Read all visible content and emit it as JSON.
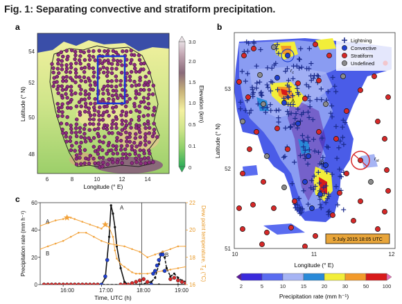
{
  "figure": {
    "title": "Fig. 1: Separating convective and stratiform precipitation."
  },
  "panel_a": {
    "label": "a",
    "xlabel": "Longitude (° E)",
    "ylabel": "Latitude (° N)",
    "xticks": [
      "6",
      "8",
      "10",
      "12",
      "14"
    ],
    "yticks": [
      "48",
      "50",
      "52",
      "54"
    ],
    "colorbar_label": "Elevation (km)",
    "colorbar_ticks": [
      "3.0",
      "2.0",
      "1.5",
      "1.0",
      "0.5",
      "0.1",
      "0"
    ],
    "colors": {
      "sea": "#3a4ea8",
      "land_low": "#bfe07a",
      "land_mid": "#f4f1a0",
      "land_high": "#8a6a7a",
      "station": "#8b2a7e",
      "box": "#1a35d8"
    }
  },
  "panel_b": {
    "label": "b",
    "xlabel": "Longitude (° E)",
    "ylabel": "Latitude (° N)",
    "xticks": [
      "10",
      "11",
      "12"
    ],
    "yticks": [
      "51",
      "52",
      "53"
    ],
    "legend": [
      {
        "label": "Lightning",
        "marker": "plus",
        "color": "#1a2a8a"
      },
      {
        "label": "Convective",
        "marker": "circle",
        "color": "#1f3fd0"
      },
      {
        "label": "Stratiform",
        "marker": "circle",
        "color": "#d62828"
      },
      {
        "label": "Undefined",
        "marker": "circle",
        "color": "#8a8a8a"
      }
    ],
    "annotation_rc": "r",
    "annotation_rc_sub": "c",
    "annotation_rst": "r",
    "annotation_rst_sub": "st",
    "marker_a": "A",
    "marker_b": "B",
    "date_box": "5 July 2015 18:05 UTC",
    "colorbar_label": "Precipitation rate (mm h⁻¹)",
    "colorbar_ticks": [
      "2",
      "5",
      "10",
      "15",
      "20",
      "30",
      "50",
      "100"
    ],
    "colorbar_colors": [
      "#5a1a9a",
      "#3a2adc",
      "#5a6cf0",
      "#a6b4f4",
      "#2a8ad8",
      "#f2ee3a",
      "#f29a2a",
      "#d81a1a",
      "#e86ab0"
    ]
  },
  "panel_c": {
    "label": "c",
    "xlabel": "Time, UTC (h)",
    "ylabel_left": "Precipitation rate (mm h⁻¹)",
    "ylabel_right": "Dew point temperature, T",
    "ylabel_right_sub": "d",
    "ylabel_right_unit": " (°C)",
    "xticks": [
      "16:00",
      "17:00",
      "18:00",
      "19:00"
    ],
    "yticks_left": [
      "0",
      "20",
      "40",
      "60"
    ],
    "yticks_right": [
      "16",
      "18",
      "20",
      "22"
    ],
    "series_labels": [
      "A",
      "B"
    ]
  },
  "chart_data": {
    "type": "line",
    "title": "",
    "xlabel": "Time, UTC (h)",
    "ylabel": "Precipitation rate (mm h⁻¹)",
    "y2label": "Dew point temperature, Td (°C)",
    "xlim": [
      15.4,
      19.2
    ],
    "ylim": [
      0,
      60
    ],
    "y2lim": [
      16,
      22
    ],
    "grid": false,
    "vline_x": 18.05,
    "series": [
      {
        "name": "A",
        "axis": "left",
        "color": "#111111",
        "style": "solid",
        "x": [
          15.5,
          16.0,
          16.5,
          16.9,
          17.0,
          17.1,
          17.2,
          17.25,
          17.3,
          17.35,
          17.4,
          17.5,
          17.6,
          17.7,
          18.0,
          18.5,
          19.0,
          19.2
        ],
        "y": [
          0,
          0,
          0,
          0,
          0,
          5,
          35,
          58,
          52,
          42,
          28,
          12,
          2,
          0,
          0,
          0,
          0,
          0
        ]
      },
      {
        "name": "B",
        "axis": "left",
        "color": "#111111",
        "style": "dashed",
        "x": [
          15.5,
          16.0,
          17.0,
          17.5,
          18.0,
          18.3,
          18.4,
          18.5,
          18.55,
          18.6,
          18.65,
          18.7,
          18.8,
          18.9,
          19.0,
          19.1,
          19.2
        ],
        "y": [
          0,
          0,
          0,
          0,
          0,
          2,
          5,
          15,
          22,
          24,
          20,
          12,
          6,
          8,
          5,
          3,
          2
        ]
      },
      {
        "name": "A",
        "axis": "right",
        "color": "#f2a23a",
        "style": "solid",
        "x": [
          15.4,
          15.6,
          15.8,
          16.0,
          16.1,
          16.2,
          16.3,
          16.5,
          16.7,
          16.9,
          17.0,
          17.1,
          17.2,
          17.3,
          17.35,
          17.4,
          17.5,
          17.6,
          17.7,
          17.8,
          17.9,
          18.0,
          18.2,
          18.4,
          18.6,
          18.8,
          19.0,
          19.2
        ],
        "y": [
          20.3,
          20.5,
          20.7,
          20.8,
          20.9,
          20.9,
          20.8,
          20.6,
          20.4,
          20.2,
          20.1,
          20.4,
          20.2,
          19.5,
          18.5,
          17.9,
          17.5,
          17.3,
          17.1,
          16.9,
          16.8,
          16.8,
          16.8,
          16.9,
          17.0,
          17.1,
          17.2,
          17.3
        ]
      },
      {
        "name": "B",
        "axis": "right",
        "color": "#f2a23a",
        "style": "solid",
        "x": [
          15.4,
          15.6,
          15.8,
          16.0,
          16.2,
          16.4,
          16.6,
          16.8,
          17.0,
          17.2,
          17.4,
          17.6,
          17.8,
          18.0,
          18.2,
          18.4,
          18.6,
          18.8,
          19.0,
          19.2
        ],
        "y": [
          18.6,
          18.8,
          19.0,
          19.2,
          19.5,
          19.8,
          19.8,
          19.5,
          19.2,
          19.0,
          18.9,
          18.8,
          18.6,
          18.4,
          18.0,
          18.2,
          18.4,
          18.6,
          18.8,
          18.8
        ]
      },
      {
        "name": "convective",
        "axis": "left",
        "color": "#1f3fd0",
        "style": "markers",
        "x": [
          17.0,
          17.1,
          17.15,
          18.3,
          18.35,
          18.4,
          18.45,
          18.5,
          18.55,
          18.6,
          18.65
        ],
        "y": [
          0,
          6,
          18,
          0,
          8,
          10,
          14,
          18,
          22,
          22,
          10
        ]
      },
      {
        "name": "stratiform",
        "axis": "left",
        "color": "#d62828",
        "style": "markers",
        "x": [
          15.5,
          15.6,
          15.7,
          15.8,
          15.9,
          16.0,
          16.1,
          16.2,
          16.3,
          16.4,
          16.5,
          16.6,
          16.7,
          16.8,
          16.9,
          17.5,
          17.6,
          17.7,
          17.8,
          17.9,
          18.0,
          18.1,
          18.2,
          18.8,
          18.9,
          19.0,
          19.1,
          19.2
        ],
        "y": [
          0,
          0,
          0,
          0,
          0,
          0,
          0,
          0,
          0,
          0,
          0,
          0,
          0,
          0,
          0,
          0,
          0,
          0,
          1,
          2,
          3,
          4,
          2,
          4,
          5,
          3,
          2,
          1
        ]
      }
    ]
  }
}
